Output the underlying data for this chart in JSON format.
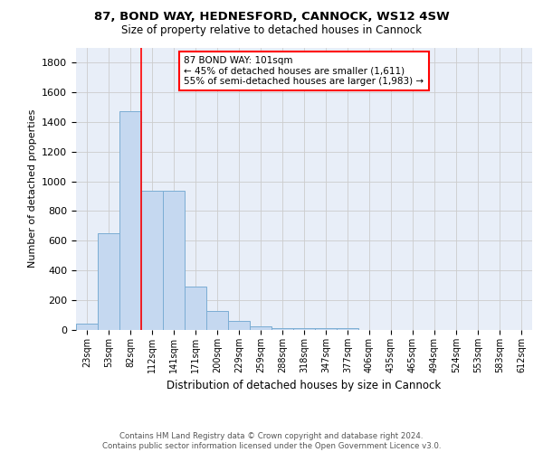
{
  "title1": "87, BOND WAY, HEDNESFORD, CANNOCK, WS12 4SW",
  "title2": "Size of property relative to detached houses in Cannock",
  "xlabel": "Distribution of detached houses by size in Cannock",
  "ylabel": "Number of detached properties",
  "categories": [
    "23sqm",
    "53sqm",
    "82sqm",
    "112sqm",
    "141sqm",
    "171sqm",
    "200sqm",
    "229sqm",
    "259sqm",
    "288sqm",
    "318sqm",
    "347sqm",
    "377sqm",
    "406sqm",
    "435sqm",
    "465sqm",
    "494sqm",
    "524sqm",
    "553sqm",
    "583sqm",
    "612sqm"
  ],
  "values": [
    40,
    650,
    1470,
    935,
    935,
    290,
    125,
    62,
    25,
    15,
    12,
    12,
    10,
    0,
    0,
    0,
    0,
    0,
    0,
    0,
    0
  ],
  "bar_color": "#c5d8f0",
  "bar_edge_color": "#7badd4",
  "grid_color": "#cccccc",
  "vline_color": "red",
  "vline_x": 2.5,
  "annotation_text": "87 BOND WAY: 101sqm\n← 45% of detached houses are smaller (1,611)\n55% of semi-detached houses are larger (1,983) →",
  "annotation_box_color": "white",
  "annotation_box_edge": "red",
  "ylim": [
    0,
    1900
  ],
  "yticks": [
    0,
    200,
    400,
    600,
    800,
    1000,
    1200,
    1400,
    1600,
    1800
  ],
  "footnote": "Contains HM Land Registry data © Crown copyright and database right 2024.\nContains public sector information licensed under the Open Government Licence v3.0.",
  "bg_color": "#e8eef8"
}
